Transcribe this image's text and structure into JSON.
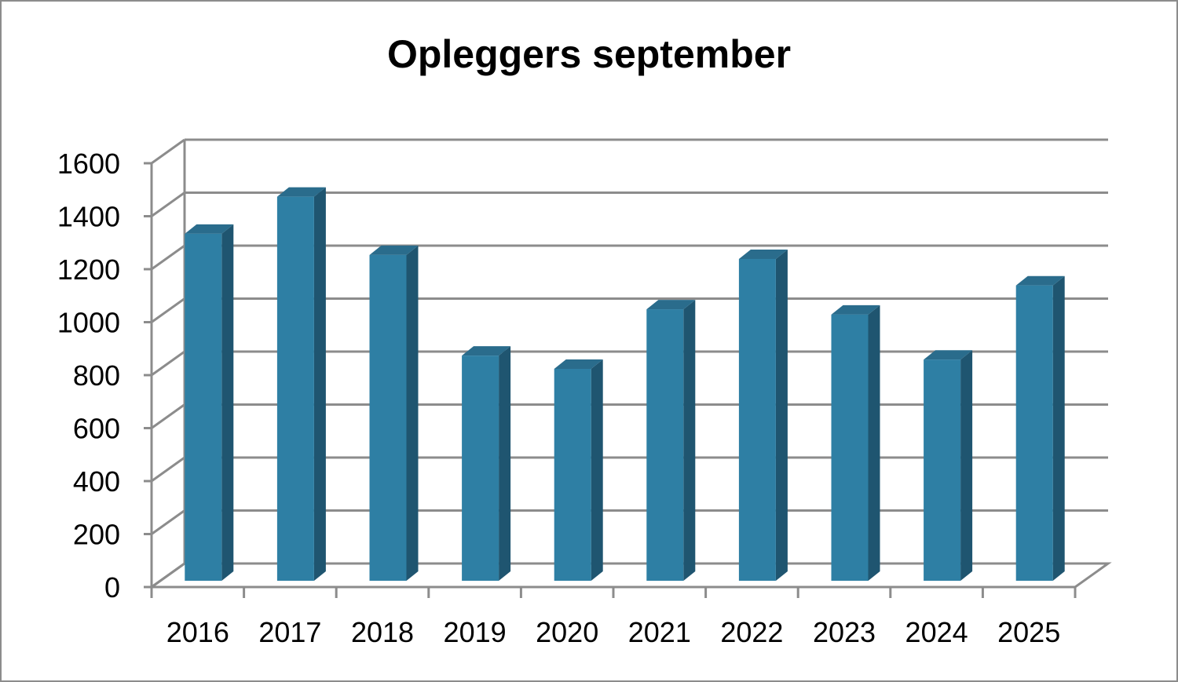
{
  "chart_data": {
    "type": "bar",
    "title": "Opleggers september",
    "xlabel": "",
    "ylabel": "",
    "categories": [
      "2016",
      "2017",
      "2018",
      "2019",
      "2020",
      "2021",
      "2022",
      "2023",
      "2024",
      "2025"
    ],
    "series": [
      {
        "values": [
          1310,
          1450,
          1230,
          850,
          800,
          1025,
          1215,
          1005,
          835,
          1115
        ]
      }
    ],
    "ylim": [
      0,
      1600
    ],
    "yticks": [
      "0",
      "200",
      "400",
      "600",
      "800",
      "1000",
      "1200",
      "1400",
      "1600"
    ],
    "grid": true,
    "legend": "none",
    "style": "3d-column",
    "colors": {
      "bar_front": "#2e7fa4",
      "bar_side": "#1f5570",
      "bar_top": "#2a6c8c",
      "grid": "#8c8c8c"
    }
  }
}
